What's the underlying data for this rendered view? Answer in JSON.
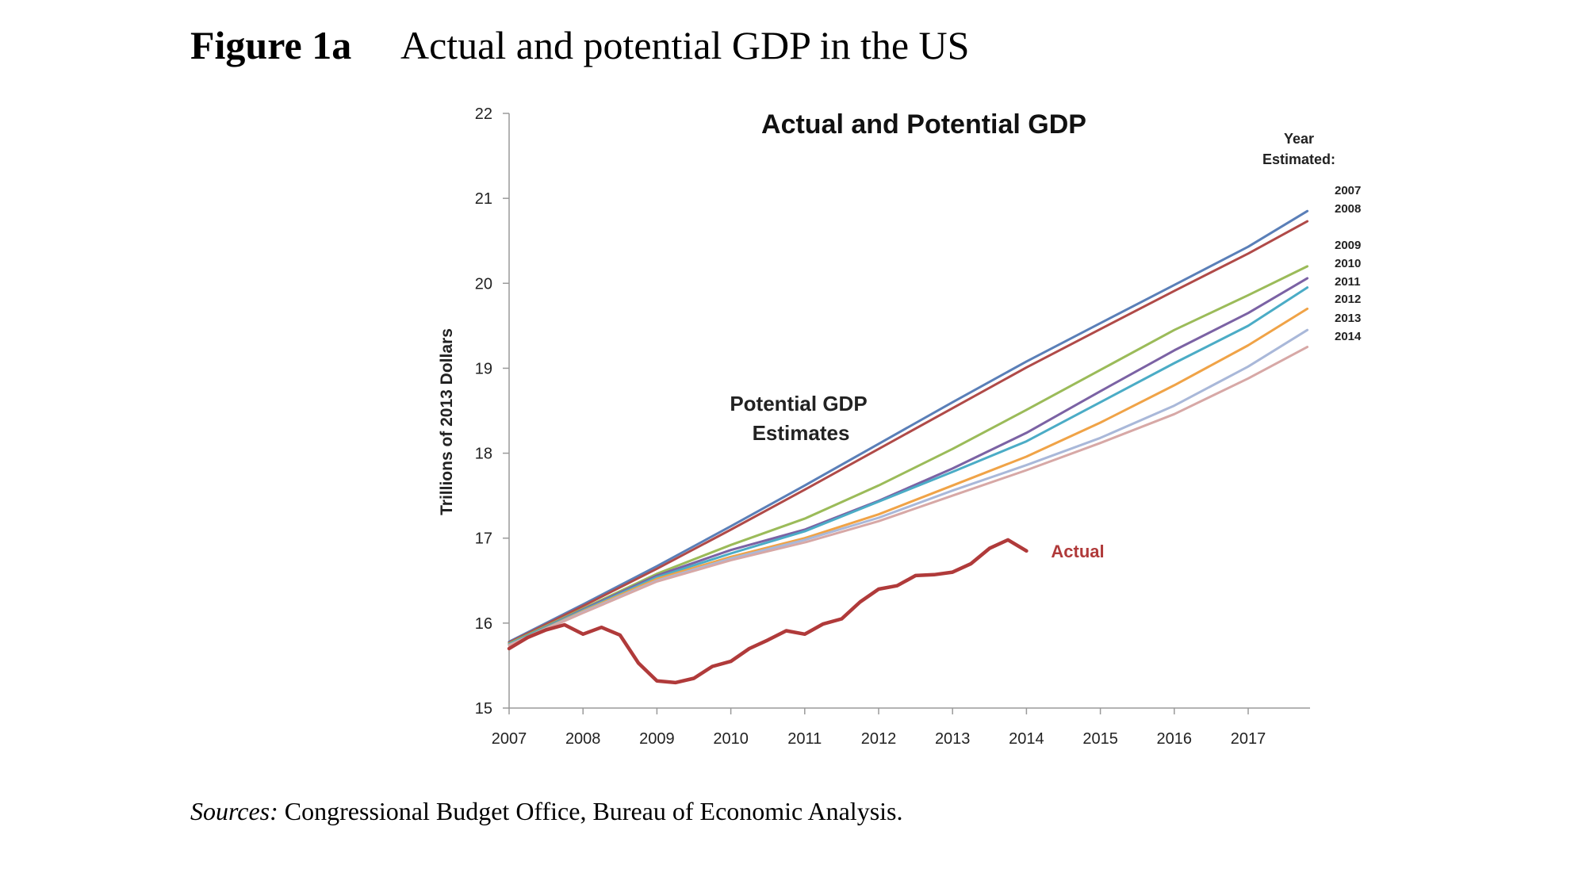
{
  "figure": {
    "number": "Figure 1a",
    "caption": "Actual and potential GDP in the US"
  },
  "sources": {
    "lead": "Sources:",
    "text": "Congressional Budget Office, Bureau of Economic Analysis."
  },
  "chart_data": {
    "type": "line",
    "title": "Actual and Potential GDP",
    "ylabel": "Trillions of 2013 Dollars",
    "xlabel": "",
    "xlim": [
      2007,
      2017.85
    ],
    "ylim": [
      15,
      22
    ],
    "x_ticks": [
      "2007",
      "2008",
      "2009",
      "2010",
      "2011",
      "2012",
      "2013",
      "2014",
      "2015",
      "2016",
      "2017"
    ],
    "y_ticks": [
      "15",
      "16",
      "17",
      "18",
      "19",
      "20",
      "21",
      "22"
    ],
    "grid": false,
    "annotation_potential": [
      "Potential GDP",
      "Estimates"
    ],
    "legend_title": [
      "Year",
      "Estimated:"
    ],
    "series": [
      {
        "name": "2007",
        "color": "#5a7fb8",
        "x": [
          2007,
          2008,
          2009,
          2010,
          2011,
          2012,
          2013,
          2014,
          2015,
          2016,
          2017,
          2017.8
        ],
        "values": [
          15.78,
          16.22,
          16.67,
          17.14,
          17.62,
          18.11,
          18.6,
          19.08,
          19.53,
          19.98,
          20.43,
          20.85
        ]
      },
      {
        "name": "2008",
        "color": "#b04a48",
        "x": [
          2007,
          2008,
          2009,
          2010,
          2011,
          2012,
          2013,
          2014,
          2015,
          2016,
          2017,
          2017.8
        ],
        "values": [
          15.77,
          16.2,
          16.64,
          17.1,
          17.57,
          18.05,
          18.53,
          19.01,
          19.46,
          19.91,
          20.35,
          20.73
        ]
      },
      {
        "name": "2009",
        "color": "#9bbb59",
        "x": [
          2007,
          2008,
          2009,
          2010,
          2011,
          2012,
          2013,
          2014,
          2015,
          2016,
          2017,
          2017.8
        ],
        "values": [
          15.76,
          16.17,
          16.58,
          16.92,
          17.23,
          17.62,
          18.05,
          18.51,
          18.98,
          19.45,
          19.86,
          20.2
        ]
      },
      {
        "name": "2010",
        "color": "#7b62a4",
        "x": [
          2007,
          2008,
          2009,
          2010,
          2011,
          2012,
          2013,
          2014,
          2015,
          2016,
          2017,
          2017.8
        ],
        "values": [
          15.75,
          16.16,
          16.56,
          16.86,
          17.1,
          17.44,
          17.82,
          18.24,
          18.73,
          19.21,
          19.65,
          20.06
        ]
      },
      {
        "name": "2011",
        "color": "#4bacc6",
        "x": [
          2007,
          2008,
          2009,
          2010,
          2011,
          2012,
          2013,
          2014,
          2015,
          2016,
          2017,
          2017.8
        ],
        "values": [
          15.75,
          16.15,
          16.54,
          16.82,
          17.08,
          17.43,
          17.78,
          18.14,
          18.6,
          19.06,
          19.5,
          19.95
        ]
      },
      {
        "name": "2012",
        "color": "#f0a347",
        "x": [
          2007,
          2008,
          2009,
          2010,
          2011,
          2012,
          2013,
          2014,
          2015,
          2016,
          2017,
          2017.8
        ],
        "values": [
          15.74,
          16.14,
          16.52,
          16.78,
          17.0,
          17.28,
          17.62,
          17.96,
          18.36,
          18.8,
          19.27,
          19.7
        ]
      },
      {
        "name": "2013",
        "color": "#a9b8d9",
        "x": [
          2007,
          2008,
          2009,
          2010,
          2011,
          2012,
          2013,
          2014,
          2015,
          2016,
          2017,
          2017.8
        ],
        "values": [
          15.74,
          16.13,
          16.5,
          16.76,
          16.98,
          17.24,
          17.56,
          17.86,
          18.18,
          18.56,
          19.02,
          19.45
        ]
      },
      {
        "name": "2014",
        "color": "#d7a8a6",
        "x": [
          2007,
          2008,
          2009,
          2010,
          2011,
          2012,
          2013,
          2014,
          2015,
          2016,
          2017,
          2017.8
        ],
        "values": [
          15.74,
          16.12,
          16.49,
          16.74,
          16.95,
          17.2,
          17.5,
          17.8,
          18.12,
          18.46,
          18.88,
          19.25
        ]
      },
      {
        "name": "Actual",
        "color": "#b03a3a",
        "x": [
          2007,
          2007.25,
          2007.5,
          2007.75,
          2008,
          2008.25,
          2008.5,
          2008.75,
          2009,
          2009.25,
          2009.5,
          2009.75,
          2010,
          2010.25,
          2010.5,
          2010.75,
          2011,
          2011.25,
          2011.5,
          2011.75,
          2012,
          2012.25,
          2012.5,
          2012.75,
          2013,
          2013.25,
          2013.5,
          2013.75,
          2014
        ],
        "values": [
          15.7,
          15.83,
          15.92,
          15.98,
          15.87,
          15.95,
          15.86,
          15.53,
          15.32,
          15.3,
          15.35,
          15.49,
          15.55,
          15.7,
          15.8,
          15.91,
          15.87,
          15.99,
          16.05,
          16.25,
          16.4,
          16.44,
          16.56,
          16.57,
          16.6,
          16.7,
          16.88,
          16.98,
          16.85
        ]
      }
    ]
  }
}
